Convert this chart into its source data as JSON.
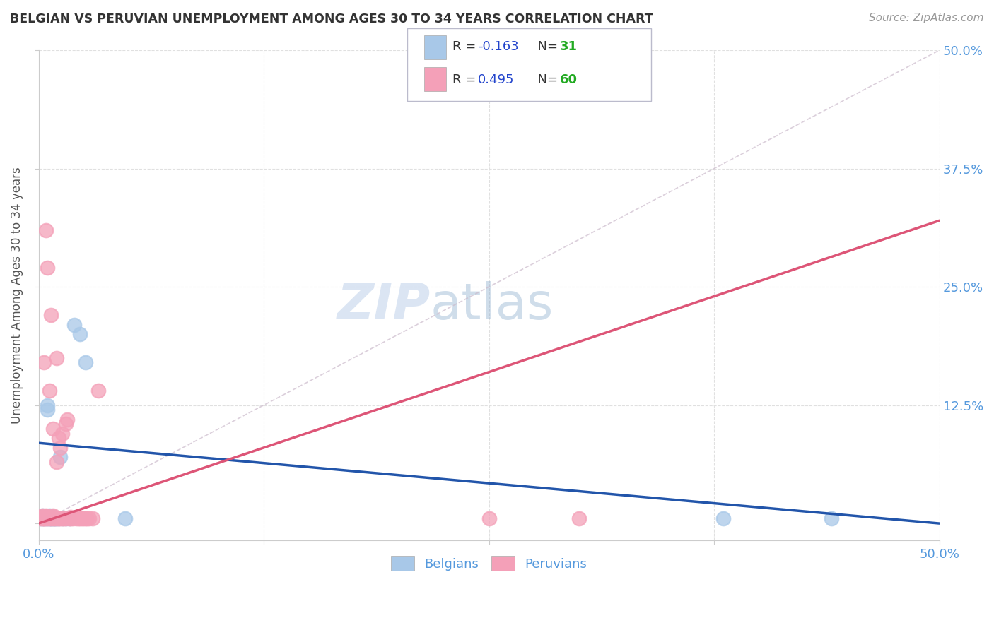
{
  "title": "BELGIAN VS PERUVIAN UNEMPLOYMENT AMONG AGES 30 TO 34 YEARS CORRELATION CHART",
  "source": "Source: ZipAtlas.com",
  "ylabel": "Unemployment Among Ages 30 to 34 years",
  "xmin": 0.0,
  "xmax": 0.5,
  "ymin": -0.018,
  "ymax": 0.5,
  "belgian_R": -0.163,
  "belgian_N": 31,
  "peruvian_R": 0.495,
  "peruvian_N": 60,
  "belgian_color": "#a8c8e8",
  "peruvian_color": "#f4a0b8",
  "belgian_line_color": "#2255aa",
  "peruvian_line_color": "#dd5577",
  "watermark_zip": "ZIP",
  "watermark_atlas": "atlas",
  "title_color": "#333333",
  "axis_label_color": "#5599dd",
  "grid_color": "#e0e0e0",
  "legend_r_color": "#2244cc",
  "legend_n_color": "#22aa22",
  "belgian_x": [
    0.001,
    0.002,
    0.002,
    0.003,
    0.003,
    0.004,
    0.004,
    0.005,
    0.005,
    0.005,
    0.006,
    0.006,
    0.006,
    0.007,
    0.007,
    0.008,
    0.008,
    0.009,
    0.009,
    0.01,
    0.011,
    0.012,
    0.013,
    0.015,
    0.017,
    0.02,
    0.023,
    0.026,
    0.048,
    0.38,
    0.44
  ],
  "belgian_y": [
    0.005,
    0.005,
    0.008,
    0.005,
    0.007,
    0.006,
    0.005,
    0.12,
    0.125,
    0.005,
    0.005,
    0.007,
    0.008,
    0.005,
    0.005,
    0.005,
    0.007,
    0.005,
    0.005,
    0.005,
    0.005,
    0.07,
    0.005,
    0.005,
    0.005,
    0.21,
    0.2,
    0.17,
    0.005,
    0.005,
    0.005
  ],
  "peruvian_x": [
    0.001,
    0.001,
    0.002,
    0.002,
    0.002,
    0.003,
    0.003,
    0.003,
    0.003,
    0.004,
    0.004,
    0.004,
    0.005,
    0.005,
    0.005,
    0.005,
    0.006,
    0.006,
    0.006,
    0.007,
    0.007,
    0.007,
    0.008,
    0.008,
    0.008,
    0.009,
    0.009,
    0.009,
    0.01,
    0.01,
    0.01,
    0.011,
    0.011,
    0.012,
    0.012,
    0.013,
    0.013,
    0.014,
    0.015,
    0.015,
    0.016,
    0.017,
    0.017,
    0.018,
    0.018,
    0.019,
    0.02,
    0.021,
    0.022,
    0.023,
    0.023,
    0.024,
    0.025,
    0.026,
    0.027,
    0.028,
    0.03,
    0.033,
    0.25,
    0.3
  ],
  "peruvian_y": [
    0.005,
    0.007,
    0.005,
    0.006,
    0.008,
    0.005,
    0.007,
    0.17,
    0.005,
    0.005,
    0.008,
    0.31,
    0.005,
    0.006,
    0.007,
    0.27,
    0.005,
    0.006,
    0.14,
    0.005,
    0.007,
    0.22,
    0.005,
    0.008,
    0.1,
    0.005,
    0.007,
    0.006,
    0.005,
    0.175,
    0.065,
    0.005,
    0.09,
    0.005,
    0.08,
    0.005,
    0.095,
    0.005,
    0.105,
    0.005,
    0.11,
    0.005,
    0.006,
    0.005,
    0.007,
    0.005,
    0.006,
    0.005,
    0.005,
    0.005,
    0.006,
    0.005,
    0.005,
    0.005,
    0.005,
    0.005,
    0.005,
    0.14,
    0.005,
    0.005
  ]
}
